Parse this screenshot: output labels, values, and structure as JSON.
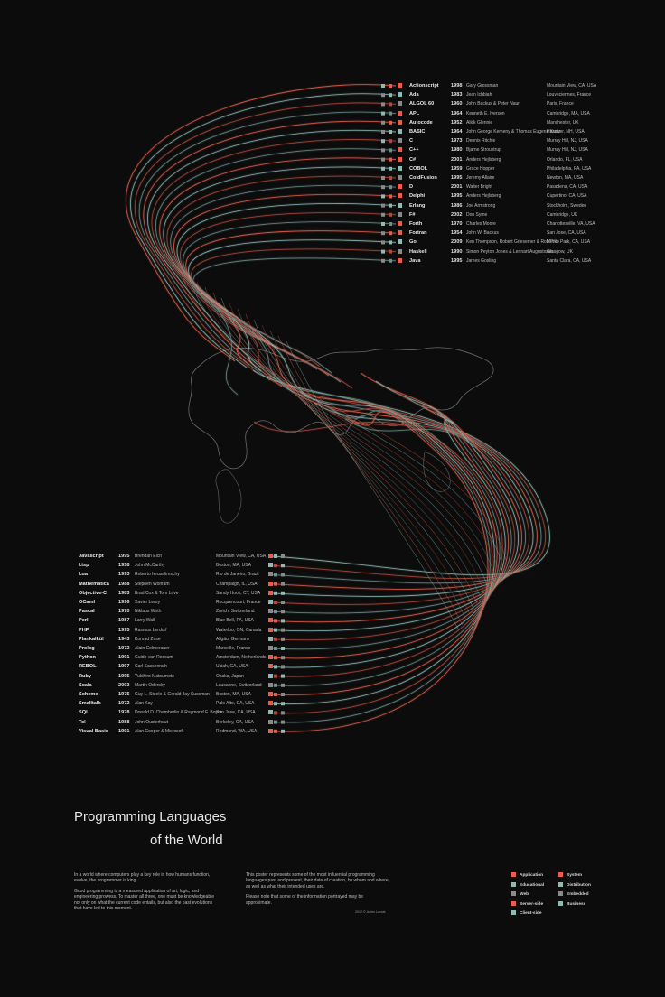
{
  "title": {
    "line1": "Programming Languages",
    "line2": "of the World"
  },
  "intro": {
    "p1": "In a world where computers play a key role in how humans function, evolve, the programmer is king.",
    "p2": "Good programming is a measured application of art, logic, and engineering prowess. To master all three, one must be knowledgeable not only on what the current code entails, but also the past evolutions that have led to this moment."
  },
  "about": {
    "p1": "This poster represents some of the most influential programming languages past and present, their date of creation, by whom and where, as well as what their intended uses are.",
    "p2": "Please note that some of the information portrayed may be approximate."
  },
  "credit": "2012 © Julien Lavoie",
  "colors": {
    "background": "#0c0c0c",
    "red": "#e4604c",
    "teal": "#8fbab2",
    "grey": "#8a8a8a"
  },
  "legend": {
    "left": [
      "Application",
      "Educational",
      "Web",
      "Server-side",
      "Client-side"
    ],
    "right": [
      "System",
      "Distribution",
      "Embedded",
      "Business"
    ]
  },
  "top_languages": [
    {
      "name": "Actionscript",
      "year": "1998",
      "creator": "Gary Grossman",
      "place": "Mountain View, CA, USA"
    },
    {
      "name": "Ada",
      "year": "1983",
      "creator": "Jean Ichbiah",
      "place": "Louveciennes, France"
    },
    {
      "name": "ALGOL 60",
      "year": "1960",
      "creator": "John Backus & Peter Naur",
      "place": "Paris, France"
    },
    {
      "name": "APL",
      "year": "1964",
      "creator": "Kenneth E. Iverson",
      "place": "Cambridge, MA, USA"
    },
    {
      "name": "Autocode",
      "year": "1952",
      "creator": "Alick Glennie",
      "place": "Manchester, UK"
    },
    {
      "name": "BASIC",
      "year": "1964",
      "creator": "John George Kemeny & Thomas Eugene Kurtz",
      "place": "Hanover, NH, USA"
    },
    {
      "name": "C",
      "year": "1973",
      "creator": "Dennis Ritchie",
      "place": "Murray Hill, NJ, USA"
    },
    {
      "name": "C++",
      "year": "1980",
      "creator": "Bjarne Stroustrup",
      "place": "Murray Hill, NJ, USA"
    },
    {
      "name": "C#",
      "year": "2001",
      "creator": "Anders Hejlsberg",
      "place": "Orlando, FL, USA"
    },
    {
      "name": "COBOL",
      "year": "1959",
      "creator": "Grace Hopper",
      "place": "Philadelphia, PA, USA"
    },
    {
      "name": "ColdFusion",
      "year": "1995",
      "creator": "Jeremy Allaire",
      "place": "Newton, MA, USA"
    },
    {
      "name": "D",
      "year": "2001",
      "creator": "Walter Bright",
      "place": "Pasadena, CA, USA"
    },
    {
      "name": "Delphi",
      "year": "1995",
      "creator": "Anders Hejlsberg",
      "place": "Cupertino, CA, USA"
    },
    {
      "name": "Erlang",
      "year": "1986",
      "creator": "Joe Armstrong",
      "place": "Stockholm, Sweden"
    },
    {
      "name": "F#",
      "year": "2002",
      "creator": "Don Syme",
      "place": "Cambridge, UK"
    },
    {
      "name": "Forth",
      "year": "1970",
      "creator": "Charles Moore",
      "place": "Charlottesville, VA, USA"
    },
    {
      "name": "Fortran",
      "year": "1954",
      "creator": "John W. Backus",
      "place": "San Jose, CA, USA"
    },
    {
      "name": "Go",
      "year": "2009",
      "creator": "Ken Thompson, Robert Griesemer & Rob Pike",
      "place": "Menlo Park, CA, USA"
    },
    {
      "name": "Haskell",
      "year": "1990",
      "creator": "Simon Peyton Jones & Lennart Augustsson",
      "place": "Glasgow, UK"
    },
    {
      "name": "Java",
      "year": "1995",
      "creator": "James Gosling",
      "place": "Santa Clara, CA, USA"
    }
  ],
  "bottom_languages": [
    {
      "name": "Javascript",
      "year": "1995",
      "creator": "Brendan Eich",
      "place": "Mountain View, CA, USA"
    },
    {
      "name": "Lisp",
      "year": "1958",
      "creator": "John McCarthy",
      "place": "Boston, MA, USA"
    },
    {
      "name": "Lua",
      "year": "1993",
      "creator": "Roberto Ierusalimschy",
      "place": "Rio de Janeiro, Brazil"
    },
    {
      "name": "Mathematica",
      "year": "1988",
      "creator": "Stephen Wolfram",
      "place": "Champaign, IL, USA"
    },
    {
      "name": "Objective-C",
      "year": "1983",
      "creator": "Brad Cox & Tom Love",
      "place": "Sandy Hook, CT, USA"
    },
    {
      "name": "OCaml",
      "year": "1996",
      "creator": "Xavier Leroy",
      "place": "Rocquencourt, France"
    },
    {
      "name": "Pascal",
      "year": "1970",
      "creator": "Niklaus Wirth",
      "place": "Zurich, Switzerland"
    },
    {
      "name": "Perl",
      "year": "1987",
      "creator": "Larry Wall",
      "place": "Blue Bell, PA, USA"
    },
    {
      "name": "PHP",
      "year": "1995",
      "creator": "Rasmus Lerdorf",
      "place": "Waterloo, ON, Canada"
    },
    {
      "name": "Plankalkül",
      "year": "1943",
      "creator": "Konrad Zuse",
      "place": "Allgäu, Germany"
    },
    {
      "name": "Prolog",
      "year": "1972",
      "creator": "Alain Colmerauer",
      "place": "Marseille, France"
    },
    {
      "name": "Python",
      "year": "1991",
      "creator": "Guido van Rossum",
      "place": "Amsterdam, Netherlands"
    },
    {
      "name": "REBOL",
      "year": "1997",
      "creator": "Carl Sassenrath",
      "place": "Ukiah, CA, USA"
    },
    {
      "name": "Ruby",
      "year": "1995",
      "creator": "Yukihiro Matsumoto",
      "place": "Osaka, Japan"
    },
    {
      "name": "Scala",
      "year": "2003",
      "creator": "Martin Odersky",
      "place": "Lausanne, Switzerland"
    },
    {
      "name": "Scheme",
      "year": "1975",
      "creator": "Guy L. Steele & Gerald Jay Sussman",
      "place": "Boston, MA, USA"
    },
    {
      "name": "Smalltalk",
      "year": "1972",
      "creator": "Alan Kay",
      "place": "Palo Alto, CA, USA"
    },
    {
      "name": "SQL",
      "year": "1978",
      "creator": "Donald D. Chamberlin & Raymond F. Boyce",
      "place": "San Jose, CA, USA"
    },
    {
      "name": "Tcl",
      "year": "1988",
      "creator": "John Ousterhout",
      "place": "Berkeley, CA, USA"
    },
    {
      "name": "Visual Basic",
      "year": "1991",
      "creator": "Alan Cooper & Microsoft",
      "place": "Redmond, WA, USA"
    }
  ]
}
